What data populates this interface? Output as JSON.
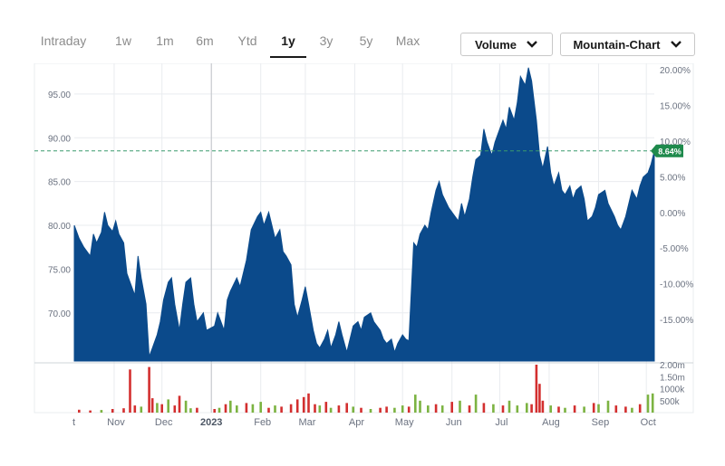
{
  "tabs": [
    {
      "label": "Intraday",
      "active": false
    },
    {
      "label": "1w",
      "active": false
    },
    {
      "label": "1m",
      "active": false
    },
    {
      "label": "6m",
      "active": false
    },
    {
      "label": "Ytd",
      "active": false
    },
    {
      "label": "1y",
      "active": true
    },
    {
      "label": "3y",
      "active": false
    },
    {
      "label": "5y",
      "active": false
    },
    {
      "label": "Max",
      "active": false
    }
  ],
  "controls": {
    "volume_label": "Volume",
    "chart_type_label": "Mountain-Chart"
  },
  "colors": {
    "area": "#0b4a8b",
    "up_volume": "#7cb342",
    "down_volume": "#d32f2f",
    "badge": "#1e8a4c",
    "reference_line": "#3a9a6e",
    "grid": "#e9ecef"
  },
  "chart_data": {
    "type": "area",
    "x_range": [
      "2022-10-07",
      "2023-10-06"
    ],
    "y_left_ticks": [
      "95.00",
      "90.00",
      "85.00",
      "80.00",
      "75.00",
      "70.00"
    ],
    "y_left_range": [
      64.5,
      98.5
    ],
    "y_right_ticks": [
      "20.00%",
      "15.00%",
      "10.00%",
      "5.00%",
      "0.00%",
      "-5.00%",
      "-10.00%",
      "-15.00%"
    ],
    "reference_price": 81.47,
    "last_change_label": "8.64%",
    "volume_ticks": [
      "2.00m",
      "1.50m",
      "1000k",
      "500k"
    ],
    "volume_range": [
      0,
      2000000
    ],
    "x_labels": [
      "t",
      "Nov",
      "Dec",
      "2023",
      "Feb",
      "Mar",
      "Apr",
      "May",
      "Jun",
      "Jul",
      "Aug",
      "Sep",
      "Oct"
    ],
    "price_points": [
      [
        "2022-10-07",
        80.0
      ],
      [
        "2022-10-10",
        78.5
      ],
      [
        "2022-10-13",
        77.5
      ],
      [
        "2022-10-17",
        76.5
      ],
      [
        "2022-10-19",
        79.0
      ],
      [
        "2022-10-21",
        78.0
      ],
      [
        "2022-10-24",
        79.2
      ],
      [
        "2022-10-26",
        81.5
      ],
      [
        "2022-10-28",
        80.0
      ],
      [
        "2022-10-31",
        79.3
      ],
      [
        "2022-11-02",
        80.5
      ],
      [
        "2022-11-04",
        79.0
      ],
      [
        "2022-11-07",
        78.0
      ],
      [
        "2022-11-09",
        74.5
      ],
      [
        "2022-11-11",
        73.5
      ],
      [
        "2022-11-14",
        72.0
      ],
      [
        "2022-11-16",
        76.5
      ],
      [
        "2022-11-18",
        74.0
      ],
      [
        "2022-11-21",
        71.0
      ],
      [
        "2022-11-23",
        65.0
      ],
      [
        "2022-11-25",
        66.0
      ],
      [
        "2022-11-28",
        67.5
      ],
      [
        "2022-11-30",
        69.0
      ],
      [
        "2022-12-02",
        71.5
      ],
      [
        "2022-12-05",
        73.5
      ],
      [
        "2022-12-07",
        74.0
      ],
      [
        "2022-12-09",
        71.0
      ],
      [
        "2022-12-12",
        68.0
      ],
      [
        "2022-12-14",
        71.0
      ],
      [
        "2022-12-16",
        73.5
      ],
      [
        "2022-12-19",
        74.0
      ],
      [
        "2022-12-21",
        71.0
      ],
      [
        "2022-12-23",
        69.0
      ],
      [
        "2022-12-27",
        70.0
      ],
      [
        "2022-12-29",
        68.0
      ],
      [
        "2023-01-03",
        68.5
      ],
      [
        "2023-01-05",
        70.0
      ],
      [
        "2023-01-09",
        68.0
      ],
      [
        "2023-01-11",
        71.5
      ],
      [
        "2023-01-13",
        72.5
      ],
      [
        "2023-01-17",
        74.0
      ],
      [
        "2023-01-19",
        73.0
      ],
      [
        "2023-01-23",
        76.0
      ],
      [
        "2023-01-26",
        79.5
      ],
      [
        "2023-01-30",
        81.0
      ],
      [
        "2023-02-01",
        81.5
      ],
      [
        "2023-02-03",
        80.0
      ],
      [
        "2023-02-06",
        81.5
      ],
      [
        "2023-02-08",
        80.0
      ],
      [
        "2023-02-10",
        78.5
      ],
      [
        "2023-02-13",
        79.5
      ],
      [
        "2023-02-15",
        77.0
      ],
      [
        "2023-02-17",
        76.5
      ],
      [
        "2023-02-20",
        75.5
      ],
      [
        "2023-02-22",
        71.0
      ],
      [
        "2023-02-24",
        69.5
      ],
      [
        "2023-02-27",
        71.5
      ],
      [
        "2023-03-01",
        73.0
      ],
      [
        "2023-03-03",
        71.0
      ],
      [
        "2023-03-06",
        68.0
      ],
      [
        "2023-03-08",
        66.5
      ],
      [
        "2023-03-10",
        66.0
      ],
      [
        "2023-03-13",
        67.0
      ],
      [
        "2023-03-15",
        68.0
      ],
      [
        "2023-03-17",
        66.0
      ],
      [
        "2023-03-20",
        67.5
      ],
      [
        "2023-03-22",
        69.0
      ],
      [
        "2023-03-24",
        67.5
      ],
      [
        "2023-03-27",
        65.5
      ],
      [
        "2023-03-29",
        67.0
      ],
      [
        "2023-03-31",
        68.5
      ],
      [
        "2023-04-03",
        69.0
      ],
      [
        "2023-04-05",
        68.0
      ],
      [
        "2023-04-07",
        69.5
      ],
      [
        "2023-04-11",
        70.0
      ],
      [
        "2023-04-13",
        69.0
      ],
      [
        "2023-04-17",
        68.0
      ],
      [
        "2023-04-19",
        67.0
      ],
      [
        "2023-04-21",
        66.5
      ],
      [
        "2023-04-24",
        67.0
      ],
      [
        "2023-04-26",
        65.5
      ],
      [
        "2023-04-28",
        66.5
      ],
      [
        "2023-05-01",
        67.5
      ],
      [
        "2023-05-03",
        67.0
      ],
      [
        "2023-05-05",
        66.8
      ],
      [
        "2023-05-08",
        78.0
      ],
      [
        "2023-05-10",
        77.5
      ],
      [
        "2023-05-12",
        79.0
      ],
      [
        "2023-05-15",
        80.0
      ],
      [
        "2023-05-17",
        79.5
      ],
      [
        "2023-05-19",
        81.5
      ],
      [
        "2023-05-22",
        84.0
      ],
      [
        "2023-05-24",
        85.0
      ],
      [
        "2023-05-26",
        83.5
      ],
      [
        "2023-05-30",
        82.0
      ],
      [
        "2023-06-01",
        81.5
      ],
      [
        "2023-06-05",
        80.5
      ],
      [
        "2023-06-07",
        82.5
      ],
      [
        "2023-06-09",
        81.0
      ],
      [
        "2023-06-12",
        83.0
      ],
      [
        "2023-06-14",
        85.5
      ],
      [
        "2023-06-16",
        87.5
      ],
      [
        "2023-06-19",
        88.0
      ],
      [
        "2023-06-21",
        91.0
      ],
      [
        "2023-06-23",
        89.5
      ],
      [
        "2023-06-26",
        88.0
      ],
      [
        "2023-06-28",
        89.5
      ],
      [
        "2023-06-30",
        90.5
      ],
      [
        "2023-07-03",
        92.0
      ],
      [
        "2023-07-05",
        91.0
      ],
      [
        "2023-07-07",
        93.5
      ],
      [
        "2023-07-10",
        92.0
      ],
      [
        "2023-07-12",
        94.0
      ],
      [
        "2023-07-14",
        97.0
      ],
      [
        "2023-07-17",
        96.0
      ],
      [
        "2023-07-19",
        98.0
      ],
      [
        "2023-07-21",
        96.5
      ],
      [
        "2023-07-24",
        92.0
      ],
      [
        "2023-07-26",
        88.0
      ],
      [
        "2023-07-28",
        86.5
      ],
      [
        "2023-07-31",
        89.0
      ],
      [
        "2023-08-02",
        86.0
      ],
      [
        "2023-08-04",
        84.5
      ],
      [
        "2023-08-07",
        86.0
      ],
      [
        "2023-08-09",
        84.0
      ],
      [
        "2023-08-11",
        83.5
      ],
      [
        "2023-08-14",
        84.5
      ],
      [
        "2023-08-16",
        83.0
      ],
      [
        "2023-08-18",
        84.0
      ],
      [
        "2023-08-21",
        84.5
      ],
      [
        "2023-08-23",
        83.0
      ],
      [
        "2023-08-25",
        80.5
      ],
      [
        "2023-08-28",
        81.0
      ],
      [
        "2023-08-30",
        82.0
      ],
      [
        "2023-09-01",
        83.5
      ],
      [
        "2023-09-05",
        84.0
      ],
      [
        "2023-09-07",
        82.5
      ],
      [
        "2023-09-11",
        81.0
      ],
      [
        "2023-09-13",
        80.0
      ],
      [
        "2023-09-15",
        79.5
      ],
      [
        "2023-09-18",
        81.0
      ],
      [
        "2023-09-20",
        82.5
      ],
      [
        "2023-09-22",
        84.0
      ],
      [
        "2023-09-25",
        83.0
      ],
      [
        "2023-09-27",
        84.5
      ],
      [
        "2023-09-29",
        85.5
      ],
      [
        "2023-10-02",
        86.0
      ],
      [
        "2023-10-04",
        87.0
      ],
      [
        "2023-10-06",
        88.5
      ]
    ],
    "volume_bars": [
      [
        "2022-10-10",
        120000,
        "down"
      ],
      [
        "2022-10-17",
        90000,
        "down"
      ],
      [
        "2022-10-24",
        110000,
        "up"
      ],
      [
        "2022-10-31",
        150000,
        "down"
      ],
      [
        "2022-11-07",
        180000,
        "down"
      ],
      [
        "2022-11-11",
        1800000,
        "down"
      ],
      [
        "2022-11-14",
        300000,
        "down"
      ],
      [
        "2022-11-18",
        250000,
        "up"
      ],
      [
        "2022-11-23",
        1900000,
        "down"
      ],
      [
        "2022-11-25",
        600000,
        "down"
      ],
      [
        "2022-11-28",
        400000,
        "up"
      ],
      [
        "2022-12-01",
        350000,
        "down"
      ],
      [
        "2022-12-05",
        550000,
        "up"
      ],
      [
        "2022-12-09",
        300000,
        "down"
      ],
      [
        "2022-12-12",
        700000,
        "down"
      ],
      [
        "2022-12-16",
        500000,
        "up"
      ],
      [
        "2022-12-19",
        180000,
        "up"
      ],
      [
        "2022-12-23",
        200000,
        "down"
      ],
      [
        "2023-01-03",
        150000,
        "down"
      ],
      [
        "2023-01-06",
        200000,
        "up"
      ],
      [
        "2023-01-10",
        350000,
        "down"
      ],
      [
        "2023-01-13",
        500000,
        "up"
      ],
      [
        "2023-01-17",
        300000,
        "up"
      ],
      [
        "2023-01-23",
        400000,
        "down"
      ],
      [
        "2023-01-27",
        350000,
        "up"
      ],
      [
        "2023-02-01",
        450000,
        "up"
      ],
      [
        "2023-02-06",
        200000,
        "down"
      ],
      [
        "2023-02-10",
        300000,
        "up"
      ],
      [
        "2023-02-14",
        250000,
        "down"
      ],
      [
        "2023-02-20",
        350000,
        "down"
      ],
      [
        "2023-02-24",
        550000,
        "down"
      ],
      [
        "2023-02-28",
        650000,
        "down"
      ],
      [
        "2023-03-03",
        800000,
        "down"
      ],
      [
        "2023-03-07",
        350000,
        "down"
      ],
      [
        "2023-03-10",
        300000,
        "up"
      ],
      [
        "2023-03-14",
        450000,
        "down"
      ],
      [
        "2023-03-17",
        200000,
        "up"
      ],
      [
        "2023-03-22",
        300000,
        "down"
      ],
      [
        "2023-03-27",
        400000,
        "down"
      ],
      [
        "2023-03-31",
        250000,
        "up"
      ],
      [
        "2023-04-05",
        200000,
        "down"
      ],
      [
        "2023-04-11",
        150000,
        "up"
      ],
      [
        "2023-04-17",
        200000,
        "down"
      ],
      [
        "2023-04-21",
        250000,
        "down"
      ],
      [
        "2023-04-26",
        200000,
        "up"
      ],
      [
        "2023-05-01",
        300000,
        "up"
      ],
      [
        "2023-05-05",
        250000,
        "down"
      ],
      [
        "2023-05-09",
        750000,
        "up"
      ],
      [
        "2023-05-12",
        500000,
        "up"
      ],
      [
        "2023-05-17",
        300000,
        "up"
      ],
      [
        "2023-05-22",
        350000,
        "down"
      ],
      [
        "2023-05-26",
        300000,
        "up"
      ],
      [
        "2023-06-01",
        450000,
        "down"
      ],
      [
        "2023-06-06",
        500000,
        "up"
      ],
      [
        "2023-06-12",
        300000,
        "down"
      ],
      [
        "2023-06-16",
        750000,
        "up"
      ],
      [
        "2023-06-21",
        400000,
        "down"
      ],
      [
        "2023-06-27",
        350000,
        "up"
      ],
      [
        "2023-07-03",
        300000,
        "down"
      ],
      [
        "2023-07-07",
        500000,
        "up"
      ],
      [
        "2023-07-12",
        300000,
        "up"
      ],
      [
        "2023-07-18",
        400000,
        "up"
      ],
      [
        "2023-07-21",
        350000,
        "down"
      ],
      [
        "2023-07-24",
        2000000,
        "down"
      ],
      [
        "2023-07-26",
        1200000,
        "down"
      ],
      [
        "2023-07-28",
        500000,
        "down"
      ],
      [
        "2023-08-02",
        300000,
        "up"
      ],
      [
        "2023-08-07",
        250000,
        "down"
      ],
      [
        "2023-08-11",
        200000,
        "up"
      ],
      [
        "2023-08-17",
        300000,
        "down"
      ],
      [
        "2023-08-23",
        250000,
        "up"
      ],
      [
        "2023-08-29",
        400000,
        "down"
      ],
      [
        "2023-09-01",
        350000,
        "up"
      ],
      [
        "2023-09-07",
        500000,
        "up"
      ],
      [
        "2023-09-12",
        300000,
        "down"
      ],
      [
        "2023-09-18",
        250000,
        "down"
      ],
      [
        "2023-09-22",
        200000,
        "up"
      ],
      [
        "2023-09-27",
        350000,
        "down"
      ],
      [
        "2023-10-02",
        750000,
        "up"
      ],
      [
        "2023-10-05",
        800000,
        "up"
      ]
    ]
  }
}
